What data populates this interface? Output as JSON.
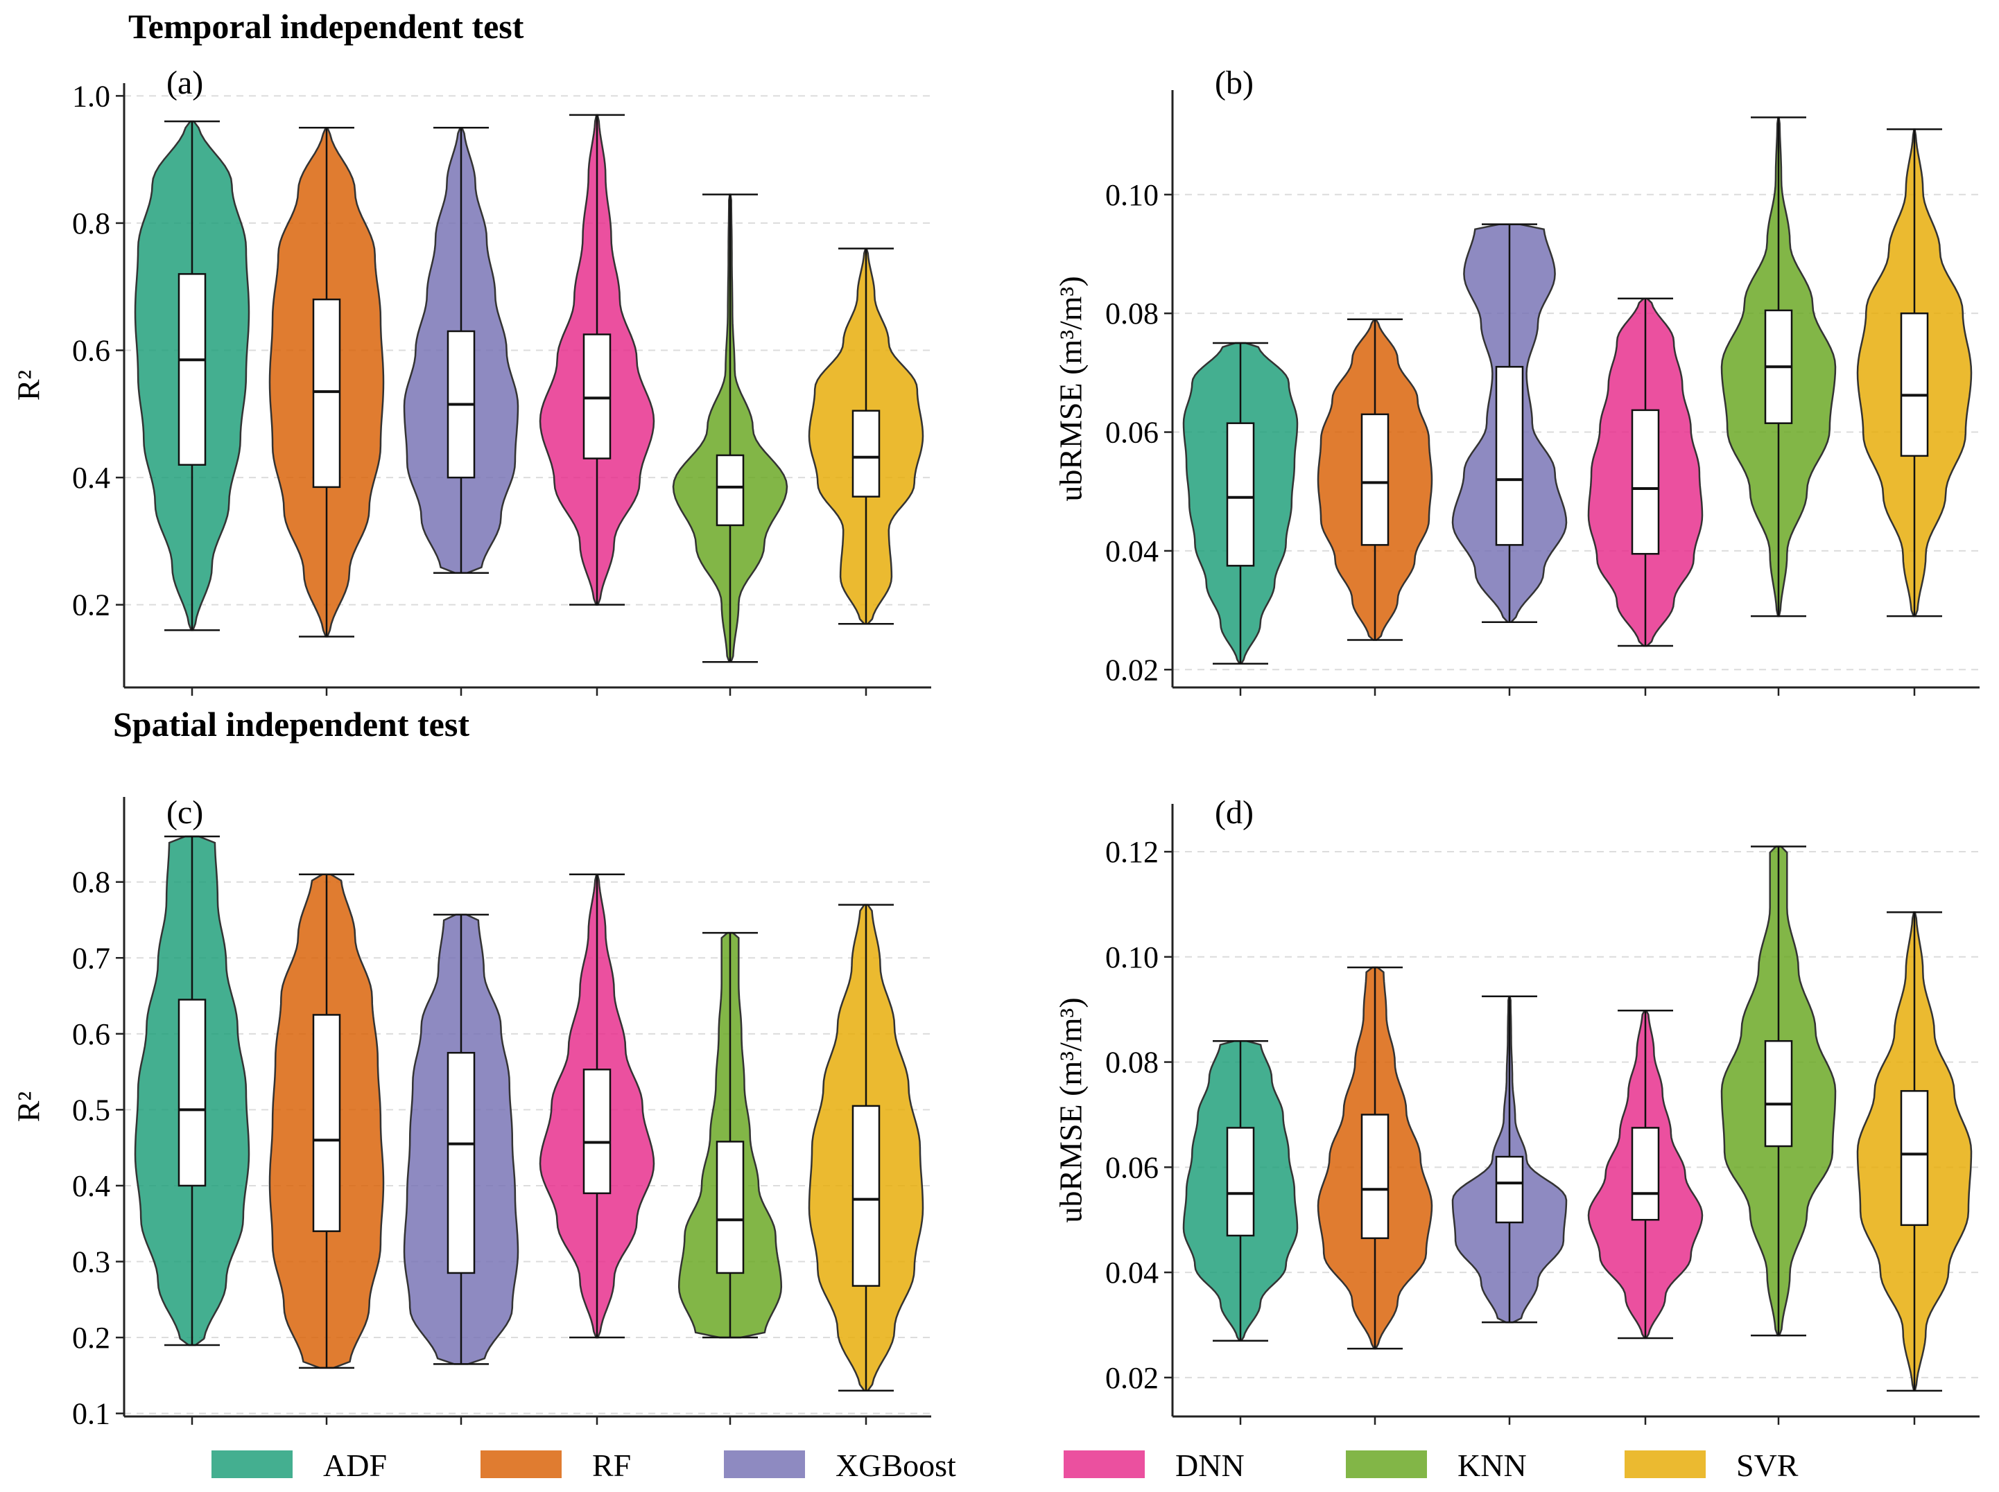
{
  "section_titles": {
    "temporal": "Temporal independent test",
    "spatial": "Spatial independent test"
  },
  "legend": [
    {
      "name": "ADF",
      "color": "#1b9e77"
    },
    {
      "name": "RF",
      "color": "#d95f02"
    },
    {
      "name": "XGBoost",
      "color": "#7570b3"
    },
    {
      "name": "DNN",
      "color": "#e7298a"
    },
    {
      "name": "KNN",
      "color": "#66a61e"
    },
    {
      "name": "SVR",
      "color": "#e6ab02"
    }
  ],
  "chart_data": [
    {
      "type": "violin",
      "panel": "(a)",
      "ylabel": "R²",
      "ylim": [
        0.07,
        1.02
      ],
      "yticks": [
        "0.2",
        "0.4",
        "0.6",
        "0.8",
        "1.0"
      ],
      "grid": true,
      "categories": [
        "ADF",
        "RF",
        "XGBoost",
        "DNN",
        "KNN",
        "SVR"
      ],
      "series": [
        {
          "name": "ADF",
          "min": 0.16,
          "q1": 0.42,
          "median": 0.585,
          "q3": 0.72,
          "max": 0.96,
          "density": [
            0.05,
            0.35,
            0.65,
            0.85,
            0.95,
            1.0,
            0.95,
            0.7,
            0.1
          ]
        },
        {
          "name": "RF",
          "min": 0.15,
          "q1": 0.385,
          "median": 0.535,
          "q3": 0.68,
          "max": 0.95,
          "density": [
            0.05,
            0.4,
            0.75,
            0.95,
            1.0,
            0.95,
            0.85,
            0.5,
            0.05
          ]
        },
        {
          "name": "XGBoost",
          "min": 0.25,
          "q1": 0.4,
          "median": 0.515,
          "q3": 0.63,
          "max": 0.95,
          "density": [
            0.35,
            0.7,
            0.95,
            1.0,
            0.8,
            0.6,
            0.45,
            0.25,
            0.05
          ]
        },
        {
          "name": "DNN",
          "min": 0.2,
          "q1": 0.43,
          "median": 0.525,
          "q3": 0.625,
          "max": 0.97,
          "density": [
            0.05,
            0.3,
            0.75,
            1.0,
            0.7,
            0.4,
            0.25,
            0.15,
            0.03
          ]
        },
        {
          "name": "KNN",
          "min": 0.11,
          "q1": 0.325,
          "median": 0.385,
          "q3": 0.435,
          "max": 0.845,
          "density": [
            0.05,
            0.15,
            0.6,
            1.0,
            0.4,
            0.08,
            0.04,
            0.03,
            0.02
          ]
        },
        {
          "name": "SVR",
          "min": 0.17,
          "q1": 0.37,
          "median": 0.432,
          "q3": 0.505,
          "max": 0.76,
          "density": [
            0.1,
            0.45,
            0.4,
            0.85,
            1.0,
            0.9,
            0.4,
            0.15,
            0.03
          ]
        }
      ]
    },
    {
      "type": "violin",
      "panel": "(b)",
      "ylabel": "ubRMSE (m³/m³)",
      "ylim": [
        0.017,
        0.1176
      ],
      "yticks": [
        "0.02",
        "0.04",
        "0.06",
        "0.08",
        "0.10"
      ],
      "grid": true,
      "categories": [
        "ADF",
        "RF",
        "XGBoost",
        "DNN",
        "KNN",
        "SVR"
      ],
      "series": [
        {
          "name": "ADF",
          "min": 0.021,
          "q1": 0.0375,
          "median": 0.049,
          "q3": 0.0615,
          "max": 0.075,
          "density": [
            0.05,
            0.35,
            0.6,
            0.8,
            0.9,
            0.95,
            1.0,
            0.85,
            0.3
          ]
        },
        {
          "name": "RF",
          "min": 0.025,
          "q1": 0.041,
          "median": 0.0515,
          "q3": 0.063,
          "max": 0.079,
          "density": [
            0.1,
            0.4,
            0.7,
            0.95,
            1.0,
            0.95,
            0.75,
            0.4,
            0.05
          ]
        },
        {
          "name": "XGBoost",
          "min": 0.028,
          "q1": 0.041,
          "median": 0.052,
          "q3": 0.071,
          "max": 0.095,
          "density": [
            0.1,
            0.6,
            1.0,
            0.8,
            0.4,
            0.3,
            0.5,
            0.8,
            0.6
          ]
        },
        {
          "name": "DNN",
          "min": 0.024,
          "q1": 0.0395,
          "median": 0.0505,
          "q3": 0.0637,
          "max": 0.0825,
          "density": [
            0.1,
            0.5,
            0.85,
            1.0,
            0.95,
            0.8,
            0.65,
            0.5,
            0.1
          ]
        },
        {
          "name": "KNN",
          "min": 0.029,
          "q1": 0.0615,
          "median": 0.071,
          "q3": 0.0805,
          "max": 0.113,
          "density": [
            0.03,
            0.15,
            0.5,
            0.9,
            1.0,
            0.6,
            0.2,
            0.05,
            0.02
          ]
        },
        {
          "name": "SVR",
          "min": 0.029,
          "q1": 0.056,
          "median": 0.0662,
          "q3": 0.08,
          "max": 0.111,
          "density": [
            0.05,
            0.2,
            0.55,
            0.9,
            1.0,
            0.85,
            0.45,
            0.15,
            0.02
          ]
        }
      ]
    },
    {
      "type": "violin",
      "panel": "(c)",
      "ylabel": "R²",
      "ylim": [
        0.096,
        0.912
      ],
      "yticks": [
        "0.1",
        "0.2",
        "0.3",
        "0.4",
        "0.5",
        "0.6",
        "0.7",
        "0.8"
      ],
      "grid": true,
      "categories": [
        "ADF",
        "RF",
        "XGBoost",
        "DNN",
        "KNN",
        "SVR"
      ],
      "series": [
        {
          "name": "ADF",
          "min": 0.19,
          "q1": 0.4,
          "median": 0.5,
          "q3": 0.645,
          "max": 0.86,
          "density": [
            0.2,
            0.6,
            0.9,
            1.0,
            0.95,
            0.8,
            0.6,
            0.45,
            0.4
          ]
        },
        {
          "name": "RF",
          "min": 0.16,
          "q1": 0.34,
          "median": 0.46,
          "q3": 0.625,
          "max": 0.81,
          "density": [
            0.4,
            0.75,
            0.95,
            1.0,
            0.95,
            0.9,
            0.8,
            0.5,
            0.25
          ]
        },
        {
          "name": "XGBoost",
          "min": 0.165,
          "q1": 0.285,
          "median": 0.455,
          "q3": 0.575,
          "max": 0.757,
          "density": [
            0.4,
            0.9,
            1.0,
            0.95,
            0.9,
            0.85,
            0.7,
            0.4,
            0.3
          ]
        },
        {
          "name": "DNN",
          "min": 0.2,
          "q1": 0.39,
          "median": 0.457,
          "q3": 0.553,
          "max": 0.81,
          "density": [
            0.05,
            0.3,
            0.7,
            1.0,
            0.8,
            0.5,
            0.3,
            0.15,
            0.03
          ]
        },
        {
          "name": "KNN",
          "min": 0.2,
          "q1": 0.285,
          "median": 0.355,
          "q3": 0.458,
          "max": 0.733,
          "density": [
            0.6,
            0.9,
            0.8,
            0.5,
            0.35,
            0.25,
            0.2,
            0.15,
            0.15
          ]
        },
        {
          "name": "SVR",
          "min": 0.13,
          "q1": 0.268,
          "median": 0.382,
          "q3": 0.505,
          "max": 0.77,
          "density": [
            0.1,
            0.5,
            0.85,
            1.0,
            0.95,
            0.75,
            0.5,
            0.25,
            0.1
          ]
        }
      ]
    },
    {
      "type": "violin",
      "panel": "(d)",
      "ylabel": "ubRMSE (m³/m³)",
      "ylim": [
        0.0126,
        0.1291
      ],
      "yticks": [
        "0.02",
        "0.04",
        "0.06",
        "0.08",
        "0.10",
        "0.12"
      ],
      "grid": true,
      "categories": [
        "ADF",
        "RF",
        "XGBoost",
        "DNN",
        "KNN",
        "SVR"
      ],
      "series": [
        {
          "name": "ADF",
          "min": 0.027,
          "q1": 0.047,
          "median": 0.055,
          "q3": 0.0675,
          "max": 0.084,
          "density": [
            0.05,
            0.35,
            0.8,
            1.0,
            0.95,
            0.85,
            0.75,
            0.55,
            0.35
          ]
        },
        {
          "name": "RF",
          "min": 0.0255,
          "q1": 0.0465,
          "median": 0.0558,
          "q3": 0.07,
          "max": 0.098,
          "density": [
            0.05,
            0.4,
            0.9,
            1.0,
            0.8,
            0.55,
            0.35,
            0.2,
            0.15
          ]
        },
        {
          "name": "XGBoost",
          "min": 0.0305,
          "q1": 0.0495,
          "median": 0.057,
          "q3": 0.062,
          "max": 0.0925,
          "density": [
            0.2,
            0.5,
            0.95,
            1.0,
            0.3,
            0.1,
            0.05,
            0.03,
            0.02
          ]
        },
        {
          "name": "DNN",
          "min": 0.0275,
          "q1": 0.05,
          "median": 0.055,
          "q3": 0.0675,
          "max": 0.0898,
          "density": [
            0.05,
            0.35,
            0.8,
            1.0,
            0.7,
            0.45,
            0.3,
            0.15,
            0.05
          ]
        },
        {
          "name": "KNN",
          "min": 0.028,
          "q1": 0.064,
          "median": 0.072,
          "q3": 0.084,
          "max": 0.121,
          "density": [
            0.05,
            0.2,
            0.5,
            0.95,
            1.0,
            0.65,
            0.35,
            0.15,
            0.15
          ]
        },
        {
          "name": "SVR",
          "min": 0.0175,
          "q1": 0.049,
          "median": 0.0625,
          "q3": 0.0745,
          "max": 0.1085,
          "density": [
            0.03,
            0.2,
            0.6,
            0.95,
            1.0,
            0.7,
            0.35,
            0.15,
            0.03
          ]
        }
      ]
    }
  ]
}
